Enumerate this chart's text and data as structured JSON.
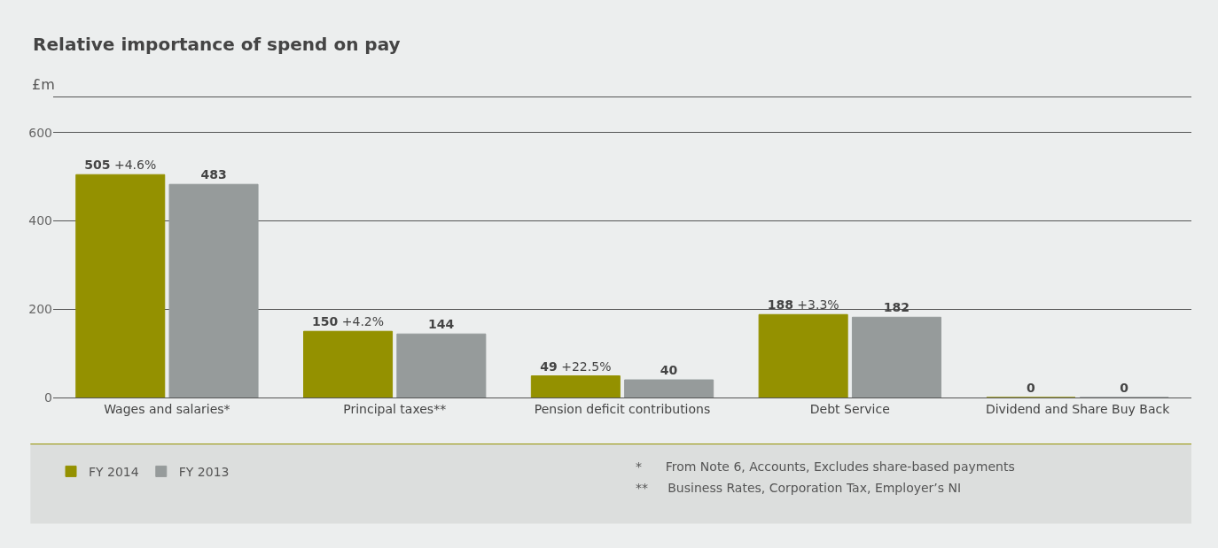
{
  "chart_data": {
    "type": "bar",
    "title": "Relative importance of spend on pay",
    "subtitle": "£m",
    "categories": [
      "Wages and salaries*",
      "Principal taxes**",
      "Pension deficit contributions",
      "Debt Service",
      "Dividend and Share Buy Back"
    ],
    "series": [
      {
        "name": "FY 2014",
        "color": "#949100",
        "values": [
          505,
          150,
          49,
          188,
          0
        ],
        "value_labels": [
          "505 +4.6%",
          "150 +4.2%",
          "49 +22.5%",
          "188 +3.3%",
          "0"
        ]
      },
      {
        "name": "FY 2013",
        "color": "#969b9b",
        "values": [
          483,
          144,
          40,
          182,
          0
        ],
        "value_labels": [
          "483",
          "144",
          "40",
          "182",
          "0"
        ]
      }
    ],
    "ylim": [
      0,
      680
    ],
    "yticks": [
      0,
      200,
      400,
      600
    ],
    "grid": "y",
    "legend": "bottom left",
    "annotations": [
      "*      From Note 6, Accounts, Excludes share-based payments",
      "**     Business Rates, Corporation Tax, Employer’s NI"
    ]
  }
}
